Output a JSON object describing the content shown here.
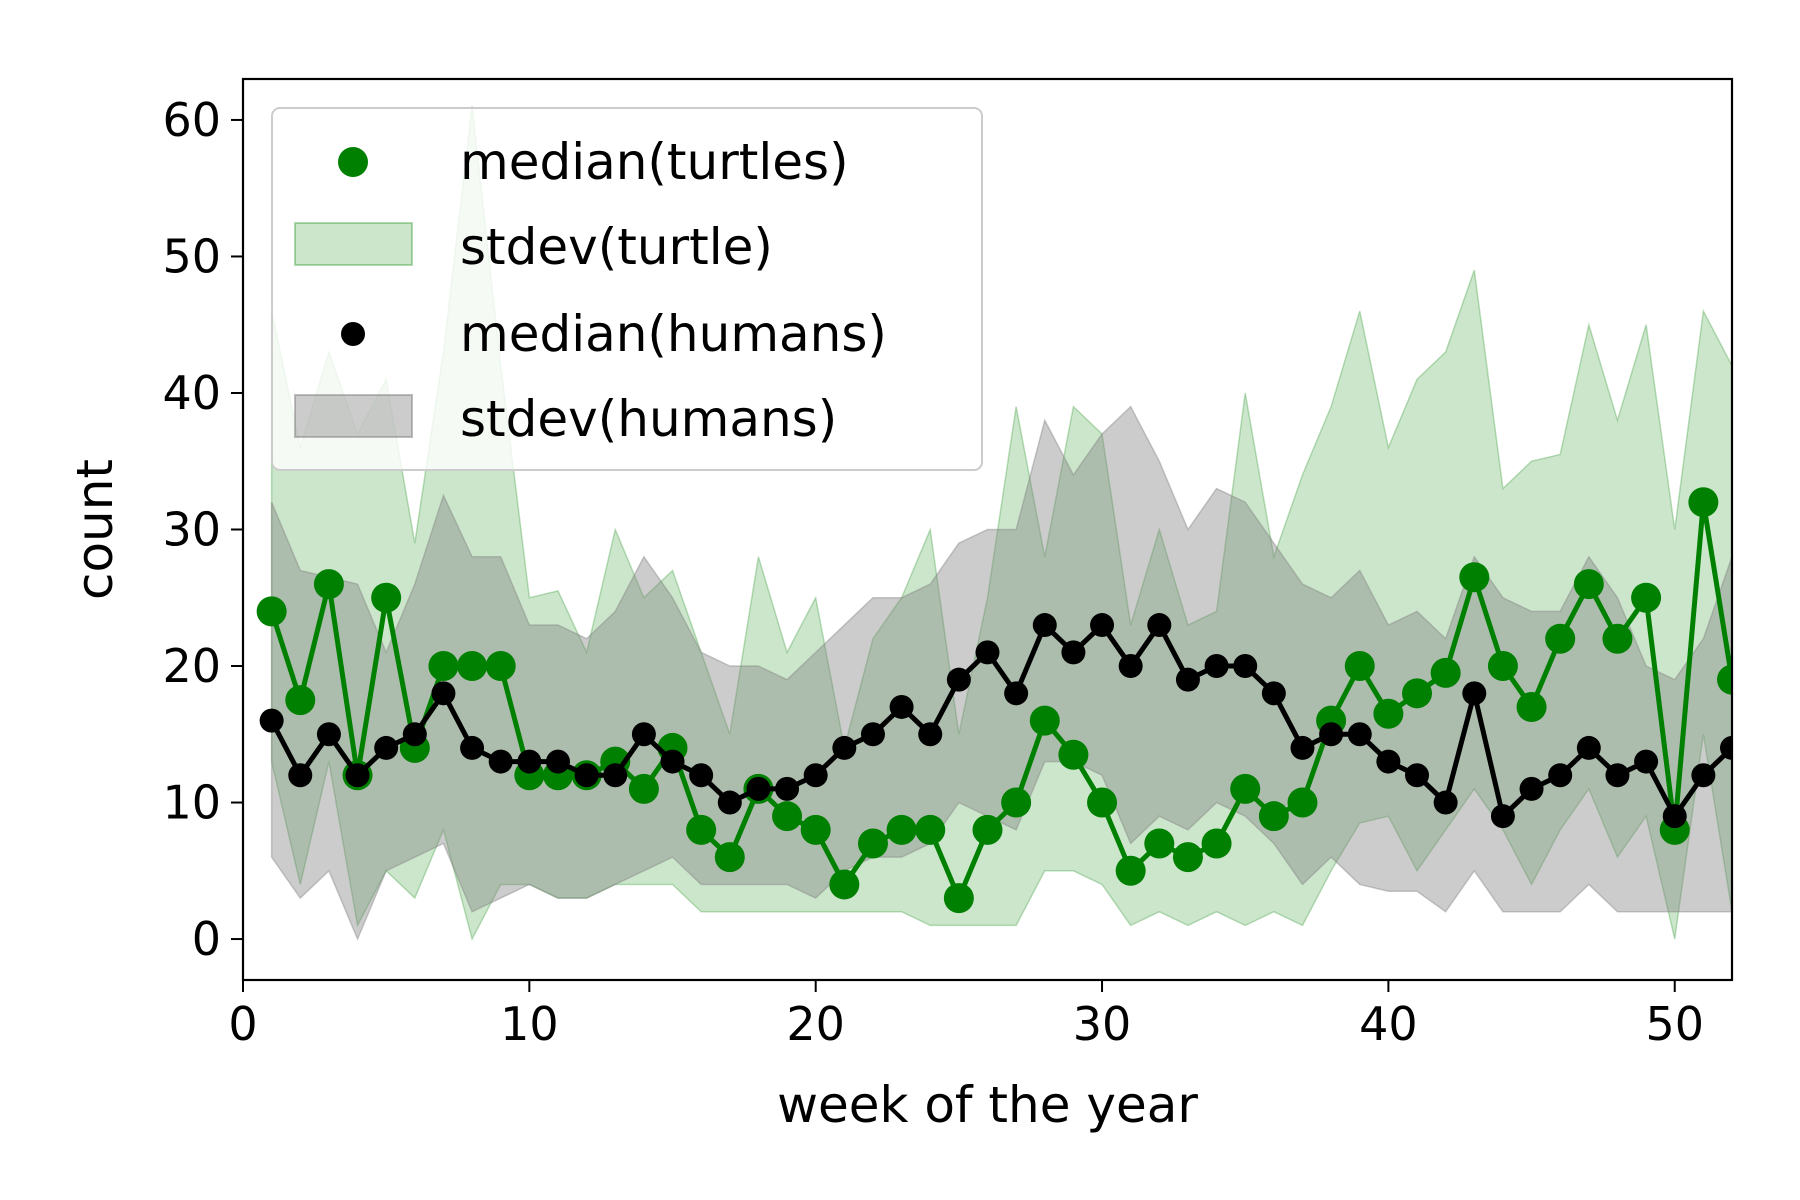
{
  "chart_data": {
    "type": "line",
    "title": "",
    "xlabel": "week of the year",
    "ylabel": "count",
    "xlim": [
      0,
      52
    ],
    "ylim": [
      -3,
      63
    ],
    "xticks": [
      0,
      10,
      20,
      30,
      40,
      50
    ],
    "yticks": [
      0,
      10,
      20,
      30,
      40,
      50,
      60
    ],
    "grid": false,
    "legend_position": "top-left",
    "x": [
      1,
      2,
      3,
      4,
      5,
      6,
      7,
      8,
      9,
      10,
      11,
      12,
      13,
      14,
      15,
      16,
      17,
      18,
      19,
      20,
      21,
      22,
      23,
      24,
      25,
      26,
      27,
      28,
      29,
      30,
      31,
      32,
      33,
      34,
      35,
      36,
      37,
      38,
      39,
      40,
      41,
      42,
      43,
      44,
      45,
      46,
      47,
      48,
      49,
      50,
      51,
      52
    ],
    "series": [
      {
        "name": "median(turtles)",
        "kind": "line-markers",
        "color": "#008000",
        "values": [
          24,
          17.5,
          26,
          12,
          25,
          14,
          20,
          20,
          20,
          12,
          12,
          12,
          13,
          11,
          14,
          8,
          6,
          11,
          9,
          8,
          4,
          7,
          8,
          8,
          3,
          8,
          10,
          16,
          13.5,
          10,
          5,
          7,
          6,
          7,
          11,
          9,
          10,
          16,
          20,
          16.5,
          18,
          19.5,
          26.5,
          20,
          17,
          22,
          26,
          22,
          25,
          8,
          32,
          19
        ]
      },
      {
        "name": "stdev(turtle)",
        "kind": "band",
        "color": "#008000",
        "lower": [
          13,
          4,
          13,
          1,
          5,
          3,
          8,
          0,
          4,
          4,
          3,
          3,
          4,
          4,
          4,
          2,
          2,
          2,
          2,
          2,
          2,
          2,
          2,
          1,
          1,
          1,
          1,
          5,
          5,
          4,
          1,
          2,
          1,
          2,
          1,
          2,
          1,
          5,
          8.5,
          9,
          5,
          8,
          11,
          8,
          4,
          8,
          11,
          6,
          9,
          0,
          15,
          2
        ],
        "upper": [
          46,
          36,
          43,
          37,
          41,
          29,
          43,
          61,
          42,
          25,
          25.5,
          21,
          30,
          25,
          27,
          21,
          15,
          28,
          21,
          25,
          14,
          22,
          25,
          30,
          15,
          25,
          39,
          28,
          39,
          37,
          23,
          30,
          23,
          24,
          40,
          28,
          34,
          39,
          46,
          36,
          41,
          43,
          49,
          33,
          35,
          35.5,
          45,
          38,
          45,
          30,
          46,
          42
        ]
      },
      {
        "name": "median(humans)",
        "kind": "line-markers",
        "color": "#000000",
        "values": [
          16,
          12,
          15,
          12,
          14,
          15,
          18,
          14,
          13,
          13,
          13,
          12,
          12,
          15,
          13,
          12,
          10,
          11,
          11,
          12,
          14,
          15,
          17,
          15,
          19,
          21,
          18,
          23,
          21,
          23,
          20,
          23,
          19,
          20,
          20,
          18,
          14,
          15,
          15,
          13,
          12,
          10,
          18,
          9,
          11,
          12,
          14,
          12,
          13,
          9,
          12,
          14
        ]
      },
      {
        "name": "stdev(humans)",
        "kind": "band",
        "color": "#7f7f7f",
        "lower": [
          6,
          3,
          5,
          0,
          5,
          6,
          7,
          2,
          3,
          4,
          3,
          3,
          4,
          5,
          6,
          4,
          4,
          4,
          4,
          3,
          5,
          6,
          6,
          7,
          10,
          9,
          8,
          13,
          13,
          12,
          7,
          9,
          8,
          10,
          9,
          7,
          4,
          6,
          4,
          3.5,
          3.5,
          2,
          5,
          2,
          2,
          2,
          4,
          2,
          2,
          2,
          2,
          2
        ],
        "upper": [
          32,
          27,
          26.5,
          26,
          21,
          26,
          32.5,
          28,
          28,
          23,
          23,
          22,
          24,
          28,
          25,
          21,
          20,
          20,
          19,
          21,
          23,
          25,
          25,
          26,
          29,
          30,
          30,
          38,
          34,
          37,
          39,
          35,
          30,
          33,
          32,
          29,
          26,
          25,
          27,
          23,
          24,
          22,
          28,
          25,
          24,
          24,
          28,
          25,
          20,
          19,
          22,
          28
        ]
      }
    ]
  }
}
